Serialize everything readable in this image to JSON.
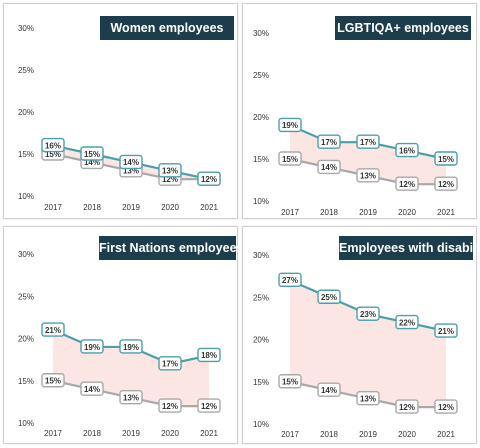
{
  "colors": {
    "series_a": "#4a9fa9",
    "series_b": "#a8a8a8",
    "band": "#fbe6e3",
    "title_bg": "#1e3d4c",
    "axis_text": "#333333"
  },
  "chart_data": [
    {
      "type": "line",
      "title": "Women employees",
      "categories": [
        "2017",
        "2018",
        "2019",
        "2020",
        "2021"
      ],
      "ylim": [
        10,
        30
      ],
      "yticks": [
        "10%",
        "15%",
        "20%",
        "25%",
        "30%"
      ],
      "series": [
        {
          "values": [
            16,
            15,
            14,
            13,
            12
          ],
          "labels": [
            "16%",
            "15%",
            "14%",
            "13%",
            "12%"
          ]
        },
        {
          "values": [
            15,
            14,
            13,
            12,
            12
          ],
          "labels": [
            "15%",
            "14%",
            "13%",
            "12%",
            "12%"
          ]
        }
      ]
    },
    {
      "type": "line",
      "title": "LGBTIQA+ employees",
      "categories": [
        "2017",
        "2018",
        "2019",
        "2020",
        "2021"
      ],
      "ylim": [
        10,
        30
      ],
      "yticks": [
        "10%",
        "15%",
        "20%",
        "25%",
        "30%"
      ],
      "series": [
        {
          "values": [
            19,
            17,
            17,
            16,
            15
          ],
          "labels": [
            "19%",
            "17%",
            "17%",
            "16%",
            "15%"
          ]
        },
        {
          "values": [
            15,
            14,
            13,
            12,
            12
          ],
          "labels": [
            "15%",
            "14%",
            "13%",
            "12%",
            "12%"
          ]
        }
      ]
    },
    {
      "type": "line",
      "title": "First Nations employees",
      "categories": [
        "2017",
        "2018",
        "2019",
        "2020",
        "2021"
      ],
      "ylim": [
        10,
        30
      ],
      "yticks": [
        "10%",
        "15%",
        "20%",
        "25%",
        "30%"
      ],
      "series": [
        {
          "values": [
            21,
            19,
            19,
            17,
            18
          ],
          "labels": [
            "21%",
            "19%",
            "19%",
            "17%",
            "18%"
          ]
        },
        {
          "values": [
            15,
            14,
            13,
            12,
            12
          ],
          "labels": [
            "15%",
            "14%",
            "13%",
            "12%",
            "12%"
          ]
        }
      ]
    },
    {
      "type": "line",
      "title": "Employees with disability",
      "categories": [
        "2017",
        "2018",
        "2019",
        "2020",
        "2021"
      ],
      "ylim": [
        10,
        30
      ],
      "yticks": [
        "10%",
        "15%",
        "20%",
        "25%",
        "30%"
      ],
      "series": [
        {
          "values": [
            27,
            25,
            23,
            22,
            21
          ],
          "labels": [
            "27%",
            "25%",
            "23%",
            "22%",
            "21%"
          ]
        },
        {
          "values": [
            15,
            14,
            13,
            12,
            12
          ],
          "labels": [
            "15%",
            "14%",
            "13%",
            "12%",
            "12%"
          ]
        }
      ]
    }
  ]
}
